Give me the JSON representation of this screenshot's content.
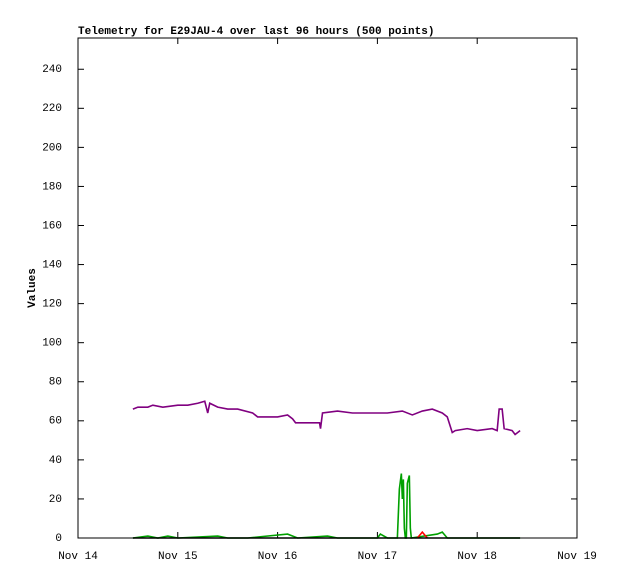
{
  "chart_data": {
    "type": "line",
    "title": "Telemetry for E29JAU-4 over last 96 hours (500 points)",
    "y_label": "Values",
    "xlim": [
      14,
      19
    ],
    "xticks": [
      {
        "value": 14,
        "label": "Nov 14"
      },
      {
        "value": 15,
        "label": "Nov 15"
      },
      {
        "value": 16,
        "label": "Nov 16"
      },
      {
        "value": 17,
        "label": "Nov 17"
      },
      {
        "value": 18,
        "label": "Nov 18"
      },
      {
        "value": 19,
        "label": "Nov 19"
      }
    ],
    "ylim": [
      0,
      256
    ],
    "yticks": [
      0,
      20,
      40,
      60,
      80,
      100,
      120,
      140,
      160,
      180,
      200,
      220,
      240
    ],
    "grid": false,
    "series": [
      {
        "color": "#800080",
        "x": [
          14.55,
          14.6,
          14.7,
          14.75,
          14.85,
          15.0,
          15.1,
          15.2,
          15.27,
          15.3,
          15.32,
          15.4,
          15.5,
          15.6,
          15.75,
          15.8,
          16.0,
          16.1,
          16.15,
          16.18,
          16.3,
          16.42,
          16.43,
          16.45,
          16.6,
          16.75,
          16.9,
          17.1,
          17.25,
          17.35,
          17.45,
          17.55,
          17.65,
          17.7,
          17.75,
          17.78,
          17.9,
          18.0,
          18.15,
          18.2,
          18.22,
          18.25,
          18.27,
          18.35,
          18.38,
          18.43
        ],
        "values": [
          66,
          67,
          67,
          68,
          67,
          68,
          68,
          69,
          70,
          64,
          69,
          67,
          66,
          66,
          64,
          62,
          62,
          63,
          61,
          59,
          59,
          59,
          56,
          64,
          65,
          64,
          64,
          64,
          65,
          63,
          65,
          66,
          64,
          62,
          54,
          55,
          56,
          55,
          56,
          55,
          66,
          66,
          56,
          55,
          53,
          55
        ]
      },
      {
        "color": "#00a000",
        "x": [
          14.55,
          14.7,
          14.8,
          14.9,
          15.0,
          15.4,
          15.5,
          15.7,
          16.1,
          16.2,
          16.5,
          16.6,
          17.0,
          17.03,
          17.1,
          17.2,
          17.22,
          17.24,
          17.25,
          17.26,
          17.27,
          17.28,
          17.29,
          17.3,
          17.32,
          17.33,
          17.34,
          17.6,
          17.65,
          17.7,
          18.43
        ],
        "values": [
          0,
          1,
          0,
          1,
          0,
          1,
          0,
          0,
          2,
          0,
          1,
          0,
          0,
          2,
          0,
          0,
          25,
          33,
          20,
          30,
          5,
          0,
          0,
          28,
          32,
          5,
          0,
          2,
          3,
          0,
          0
        ]
      },
      {
        "color": "#ff0000",
        "x": [
          17.4,
          17.45,
          17.5
        ],
        "values": [
          0,
          3,
          0
        ]
      },
      {
        "color": "#000000",
        "x": [
          14.55,
          18.43
        ],
        "values": [
          0,
          0
        ]
      }
    ]
  }
}
